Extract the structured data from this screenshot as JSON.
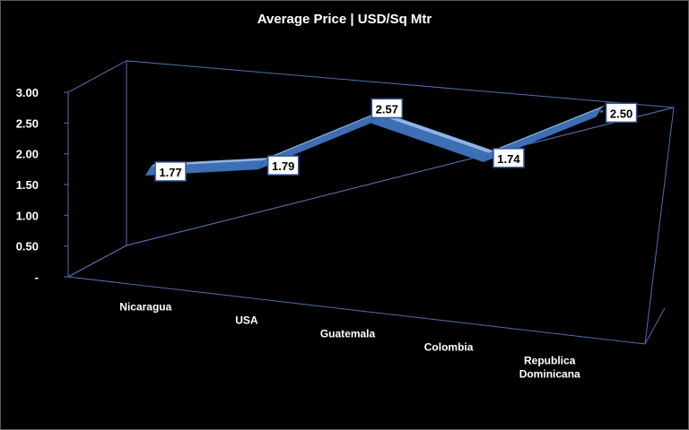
{
  "chart_data": {
    "type": "line",
    "title": "Average Price | USD/Sq Mtr",
    "categories": [
      "Nicaragua",
      "USA",
      "Guatemala",
      "Colombia",
      "Republica Dominicana"
    ],
    "values": [
      1.77,
      1.79,
      2.57,
      1.74,
      2.5
    ],
    "data_labels": [
      "1.77",
      "1.79",
      "2.57",
      "1.74",
      "2.50"
    ],
    "y_tick_labels": [
      "-",
      "0.50",
      "1.00",
      "1.50",
      "2.00",
      "2.50",
      "3.00"
    ],
    "ylim": [
      0,
      3
    ],
    "xlabel": "",
    "ylabel": "",
    "grid": false,
    "legend": "none",
    "style": "3d-ribbon",
    "colors": {
      "ribbon_top": "#8fb4e3",
      "ribbon_side": "#3d6fb5",
      "axis": "#4f6fb0",
      "background": "#000000",
      "label_border": "#2f5597"
    }
  }
}
